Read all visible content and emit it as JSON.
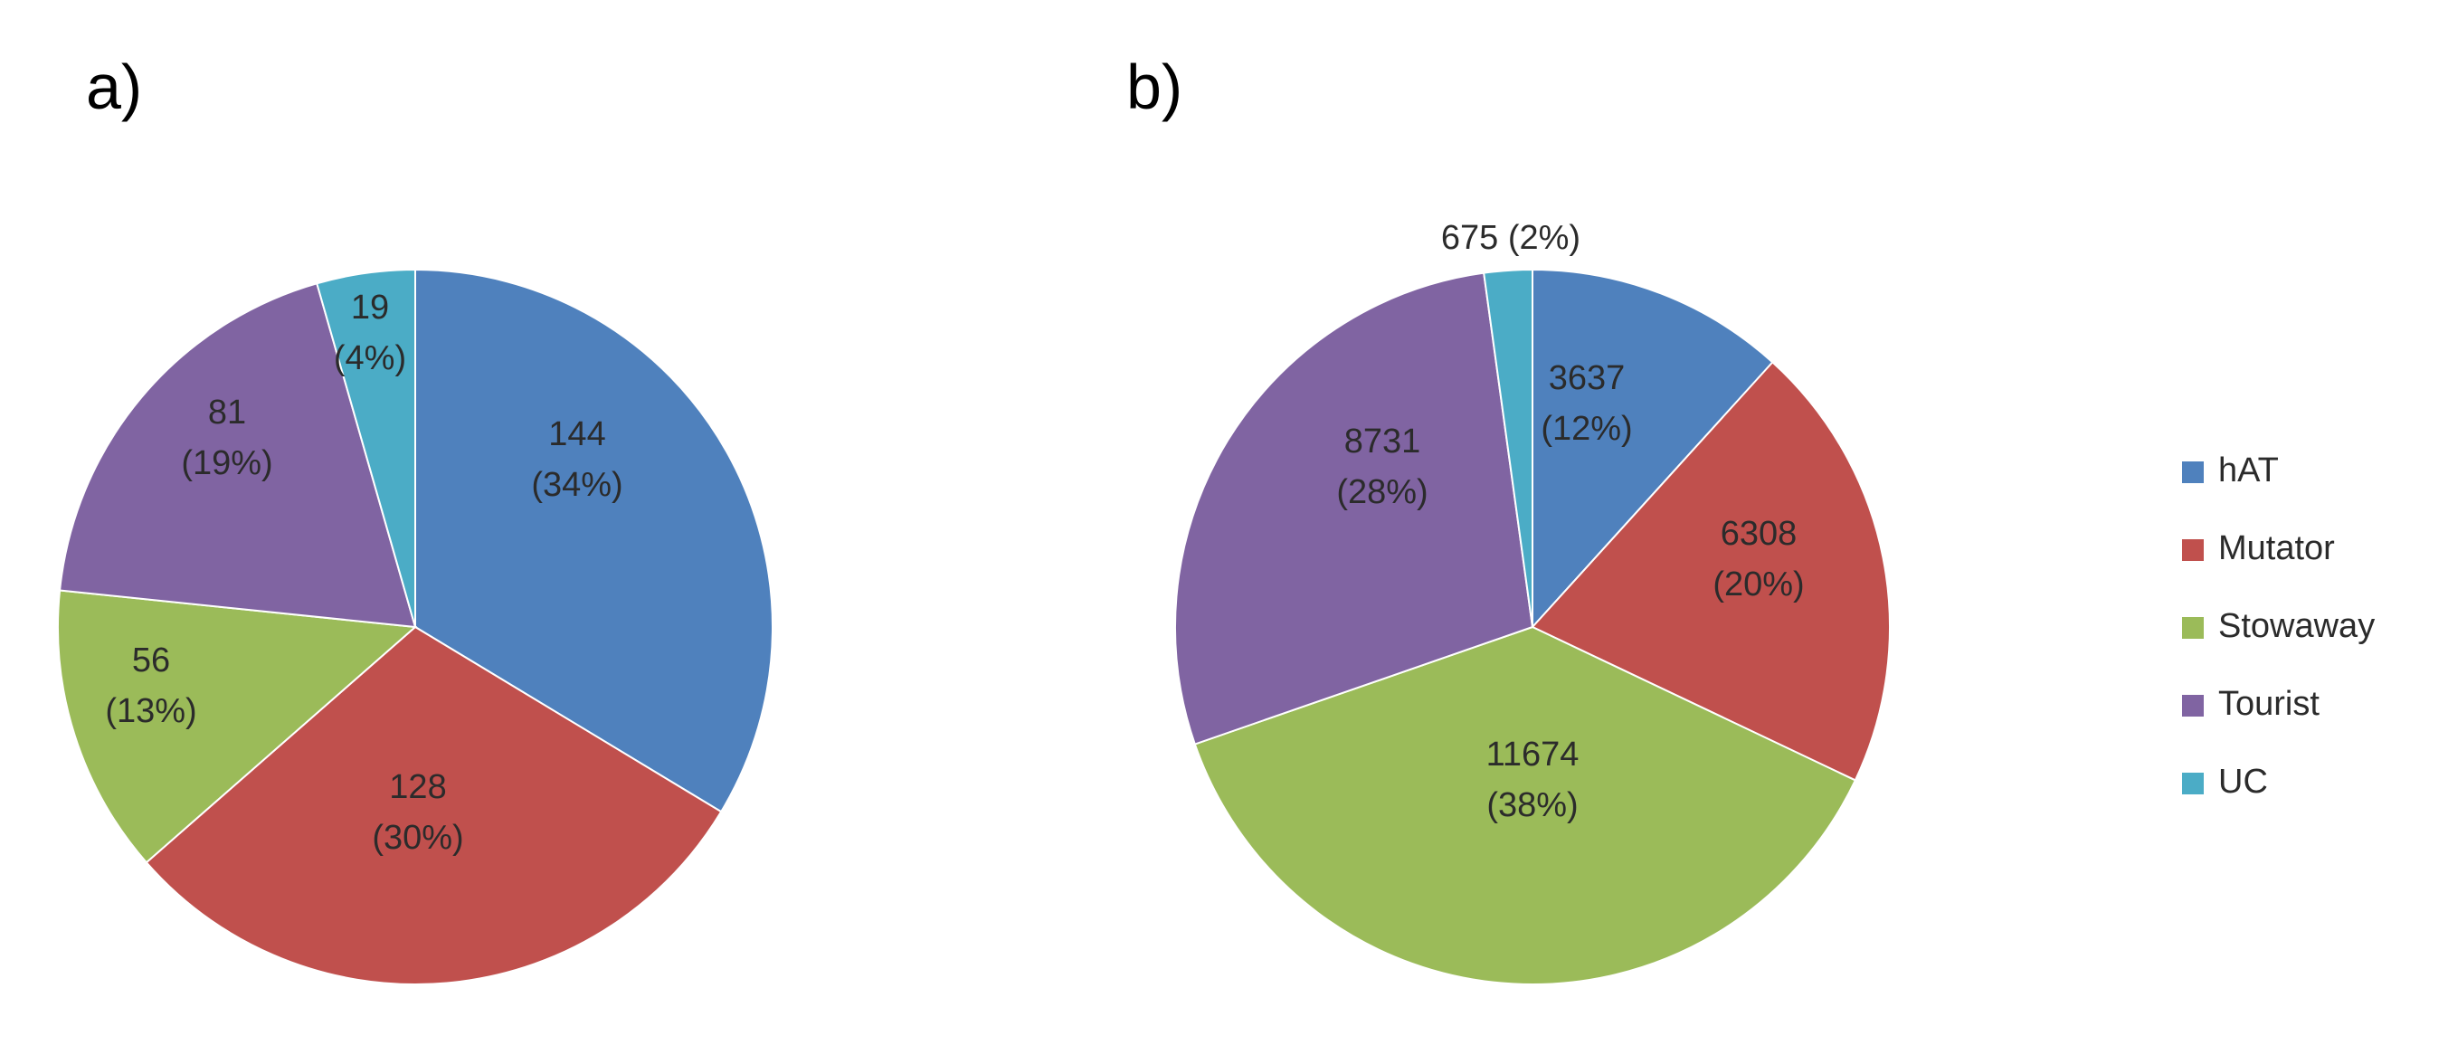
{
  "categories": [
    "hAT",
    "Mutator",
    "Stowaway",
    "Tourist",
    "UC"
  ],
  "colors": {
    "hAT": "#4F81BD",
    "Mutator": "#C0504D",
    "Stowaway": "#9BBB59",
    "Tourist": "#8064A2",
    "UC": "#4BACC6"
  },
  "chart_data": [
    {
      "type": "pie",
      "panel": "a)",
      "title": "",
      "categories": [
        "hAT",
        "Mutator",
        "Stowaway",
        "Tourist",
        "UC"
      ],
      "values": [
        144,
        128,
        56,
        81,
        19
      ],
      "labels": [
        [
          "144",
          "(34%)"
        ],
        [
          "128",
          "(30%)"
        ],
        [
          "56",
          "(13%)"
        ],
        [
          "81",
          "(19%)"
        ],
        [
          "19",
          "(4%)"
        ]
      ]
    },
    {
      "type": "pie",
      "panel": "b)",
      "title": "",
      "categories": [
        "hAT",
        "Mutator",
        "Stowaway",
        "Tourist",
        "UC"
      ],
      "values": [
        3637,
        6308,
        11674,
        8731,
        675
      ],
      "labels": [
        [
          "3637",
          "(12%)"
        ],
        [
          "6308",
          "(20%)"
        ],
        [
          "11674",
          "(38%)"
        ],
        [
          "8731",
          "(28%)"
        ],
        [
          "675 (2%)"
        ]
      ],
      "legend": {
        "position": "right",
        "entries": [
          "hAT",
          "Mutator",
          "Stowaway",
          "Tourist",
          "UC"
        ]
      }
    }
  ]
}
